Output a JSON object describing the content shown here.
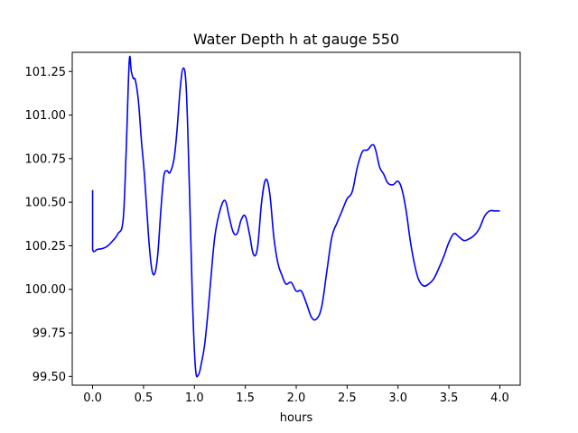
{
  "chart_data": {
    "type": "line",
    "title": "Water Depth h at gauge 550",
    "xlabel": "hours",
    "ylabel": "",
    "xlim": [
      -0.2,
      4.2
    ],
    "ylim": [
      99.45,
      101.36
    ],
    "xticks": [
      0.0,
      0.5,
      1.0,
      1.5,
      2.0,
      2.5,
      3.0,
      3.5,
      4.0
    ],
    "xtick_labels": [
      "0.0",
      "0.5",
      "1.0",
      "1.5",
      "2.0",
      "2.5",
      "3.0",
      "3.5",
      "4.0"
    ],
    "yticks": [
      99.5,
      99.75,
      100.0,
      100.25,
      100.5,
      100.75,
      101.0,
      101.25
    ],
    "ytick_labels": [
      "99.50",
      "99.75",
      "100.00",
      "100.25",
      "100.50",
      "100.75",
      "101.00",
      "101.25"
    ],
    "grid": false,
    "legend": "none",
    "series": [
      {
        "color": "#0000ff",
        "x": [
          0.0,
          0.0,
          0.0,
          0.05,
          0.1,
          0.15,
          0.2,
          0.25,
          0.3,
          0.33,
          0.36,
          0.38,
          0.4,
          0.42,
          0.45,
          0.48,
          0.51,
          0.55,
          0.58,
          0.61,
          0.64,
          0.67,
          0.7,
          0.73,
          0.76,
          0.8,
          0.83,
          0.86,
          0.89,
          0.92,
          0.95,
          0.98,
          1.01,
          1.04,
          1.07,
          1.1,
          1.13,
          1.16,
          1.2,
          1.25,
          1.3,
          1.34,
          1.38,
          1.42,
          1.46,
          1.5,
          1.54,
          1.58,
          1.62,
          1.66,
          1.7,
          1.74,
          1.78,
          1.82,
          1.86,
          1.9,
          1.95,
          2.0,
          2.05,
          2.1,
          2.15,
          2.2,
          2.25,
          2.3,
          2.35,
          2.4,
          2.45,
          2.5,
          2.55,
          2.6,
          2.65,
          2.7,
          2.75,
          2.78,
          2.82,
          2.86,
          2.9,
          2.95,
          3.0,
          3.04,
          3.08,
          3.12,
          3.16,
          3.2,
          3.25,
          3.3,
          3.35,
          3.4,
          3.45,
          3.5,
          3.55,
          3.6,
          3.65,
          3.7,
          3.75,
          3.8,
          3.85,
          3.9,
          3.95,
          4.0
        ],
        "values": [
          100.57,
          100.4,
          100.23,
          100.23,
          100.235,
          100.25,
          100.28,
          100.32,
          100.4,
          100.8,
          101.31,
          101.25,
          101.21,
          101.2,
          101.08,
          100.85,
          100.65,
          100.3,
          100.12,
          100.09,
          100.2,
          100.45,
          100.65,
          100.68,
          100.67,
          100.75,
          100.92,
          101.15,
          101.27,
          101.15,
          100.6,
          99.95,
          99.55,
          99.51,
          99.58,
          99.68,
          99.85,
          100.05,
          100.3,
          100.45,
          100.51,
          100.42,
          100.33,
          100.32,
          100.4,
          100.42,
          100.32,
          100.2,
          100.24,
          100.5,
          100.63,
          100.55,
          100.3,
          100.15,
          100.08,
          100.03,
          100.04,
          99.99,
          99.99,
          99.92,
          99.84,
          99.83,
          99.9,
          100.1,
          100.3,
          100.38,
          100.45,
          100.52,
          100.56,
          100.7,
          100.79,
          100.8,
          100.83,
          100.8,
          100.7,
          100.66,
          100.61,
          100.6,
          100.62,
          100.57,
          100.45,
          100.28,
          100.15,
          100.06,
          100.02,
          100.03,
          100.06,
          100.12,
          100.19,
          100.27,
          100.32,
          100.3,
          100.28,
          100.29,
          100.31,
          100.35,
          100.42,
          100.45,
          100.45,
          100.45
        ]
      }
    ]
  }
}
